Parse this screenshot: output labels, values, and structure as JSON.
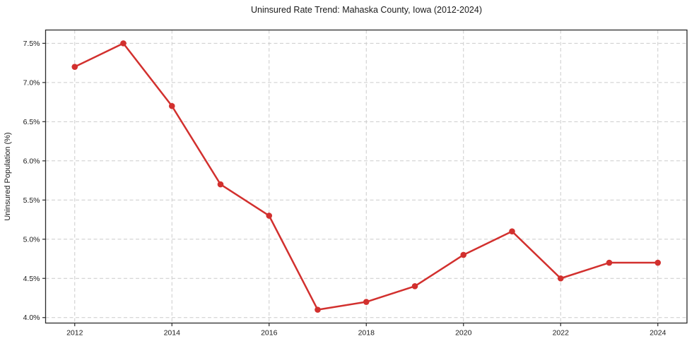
{
  "chart_data": {
    "type": "line",
    "title": "Uninsured Rate Trend: Mahaska County, Iowa (2012-2024)",
    "xlabel": "",
    "ylabel": "Uninsured Population (%)",
    "x": [
      2012,
      2013,
      2014,
      2015,
      2016,
      2017,
      2018,
      2019,
      2020,
      2021,
      2022,
      2023,
      2024
    ],
    "series": [
      {
        "name": "Uninsured rate",
        "values": [
          7.2,
          7.5,
          6.7,
          5.7,
          5.3,
          4.1,
          4.2,
          4.4,
          4.8,
          5.1,
          4.5,
          4.7,
          4.7
        ],
        "color": "#d2302e",
        "marker": "circle"
      }
    ],
    "xlim": [
      2011.4,
      2024.6
    ],
    "ylim": [
      3.93,
      7.67
    ],
    "xticks": {
      "values": [
        2012,
        2014,
        2016,
        2018,
        2020,
        2022,
        2024
      ],
      "labels": [
        "2012",
        "2014",
        "2016",
        "2018",
        "2020",
        "2022",
        "2024"
      ]
    },
    "yticks": {
      "values": [
        4.0,
        4.5,
        5.0,
        5.5,
        6.0,
        6.5,
        7.0,
        7.5
      ],
      "labels": [
        "4.0%",
        "4.5%",
        "5.0%",
        "5.5%",
        "6.0%",
        "6.5%",
        "7.0%",
        "7.5%"
      ]
    },
    "grid": {
      "show": true,
      "style": "dashed",
      "axes": "both"
    },
    "legend": {
      "show": false
    },
    "colors": {
      "line": "#d2302e",
      "grid": "#cccccc",
      "spine": "#2b2b2b",
      "text": "#1a1a1a",
      "background": "#ffffff"
    }
  }
}
